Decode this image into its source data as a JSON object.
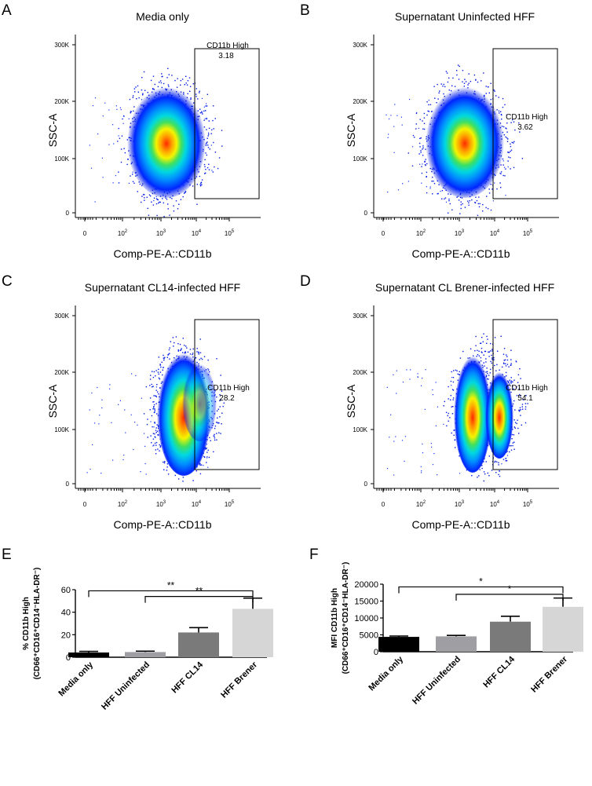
{
  "flow_panels": [
    {
      "letter": "A",
      "title": "Media only",
      "gate_label": "CD11b High",
      "gate_value": "3.18",
      "gate_text_pos": "top",
      "density": "single"
    },
    {
      "letter": "B",
      "title": "Supernatant Uninfected HFF",
      "gate_label": "CD11b High",
      "gate_value": "3.62",
      "gate_text_pos": "middle",
      "density": "single"
    },
    {
      "letter": "C",
      "title": "Supernatant CL14-infected HFF",
      "gate_label": "CD11b High",
      "gate_value": "28.2",
      "gate_text_pos": "middle",
      "density": "shifted"
    },
    {
      "letter": "D",
      "title": "Supernatant CL Brener-infected HFF",
      "gate_label": "CD11b High",
      "gate_value": "54.1",
      "gate_text_pos": "middle",
      "density": "bimodal"
    }
  ],
  "flow_axes": {
    "xlabel": "Comp-PE-A::CD11b",
    "ylabel": "SSC-A",
    "x_ticks": [
      {
        "base": "0",
        "exp": ""
      },
      {
        "base": "10",
        "exp": "2"
      },
      {
        "base": "10",
        "exp": "3"
      },
      {
        "base": "10",
        "exp": "4"
      },
      {
        "base": "10",
        "exp": "5"
      }
    ],
    "y_ticks": [
      "0",
      "100K",
      "200K",
      "300K"
    ]
  },
  "chart_data": [
    {
      "type": "bar",
      "panel": "E",
      "categories": [
        "Media only",
        "HFF Uninfected",
        "HFF CL14",
        "HFF Brener"
      ],
      "values": [
        4.2,
        4.6,
        22,
        43
      ],
      "errors": [
        1.0,
        0.8,
        4.3,
        9.5
      ],
      "colors": [
        "#000000",
        "#9e9ea3",
        "#7a7a7a",
        "#d6d6d6"
      ],
      "ylabel_line1": "% CD11b High",
      "ylabel_line2": "(CD66⁺CD16⁺CD14⁻HLA-DR⁻)",
      "ylim": [
        0,
        60
      ],
      "yticks": [
        "0",
        "20",
        "40",
        "60"
      ],
      "significance": [
        {
          "from": 0,
          "to": 3,
          "label": "**",
          "y": 59
        },
        {
          "from": 1,
          "to": 3,
          "label": "**",
          "y": 54
        }
      ]
    },
    {
      "type": "bar",
      "panel": "F",
      "categories": [
        "Media only",
        "HFF Uninfected",
        "HFF CL14",
        "HFF Brener"
      ],
      "values": [
        4400,
        4550,
        8900,
        13300
      ],
      "errors": [
        250,
        300,
        1600,
        2600
      ],
      "colors": [
        "#000000",
        "#9e9ea3",
        "#7a7a7a",
        "#d6d6d6"
      ],
      "ylabel_line1": "MFI CD11b High",
      "ylabel_line2": "(CD66⁺CD16⁺CD14⁻HLA-DR⁻)",
      "ylim": [
        0,
        20000
      ],
      "yticks": [
        "0",
        "5000",
        "10000",
        "15000",
        "20000"
      ],
      "significance": [
        {
          "from": 0,
          "to": 3,
          "label": "*",
          "y": 19200
        },
        {
          "from": 1,
          "to": 3,
          "label": "*",
          "y": 17000
        }
      ]
    }
  ]
}
